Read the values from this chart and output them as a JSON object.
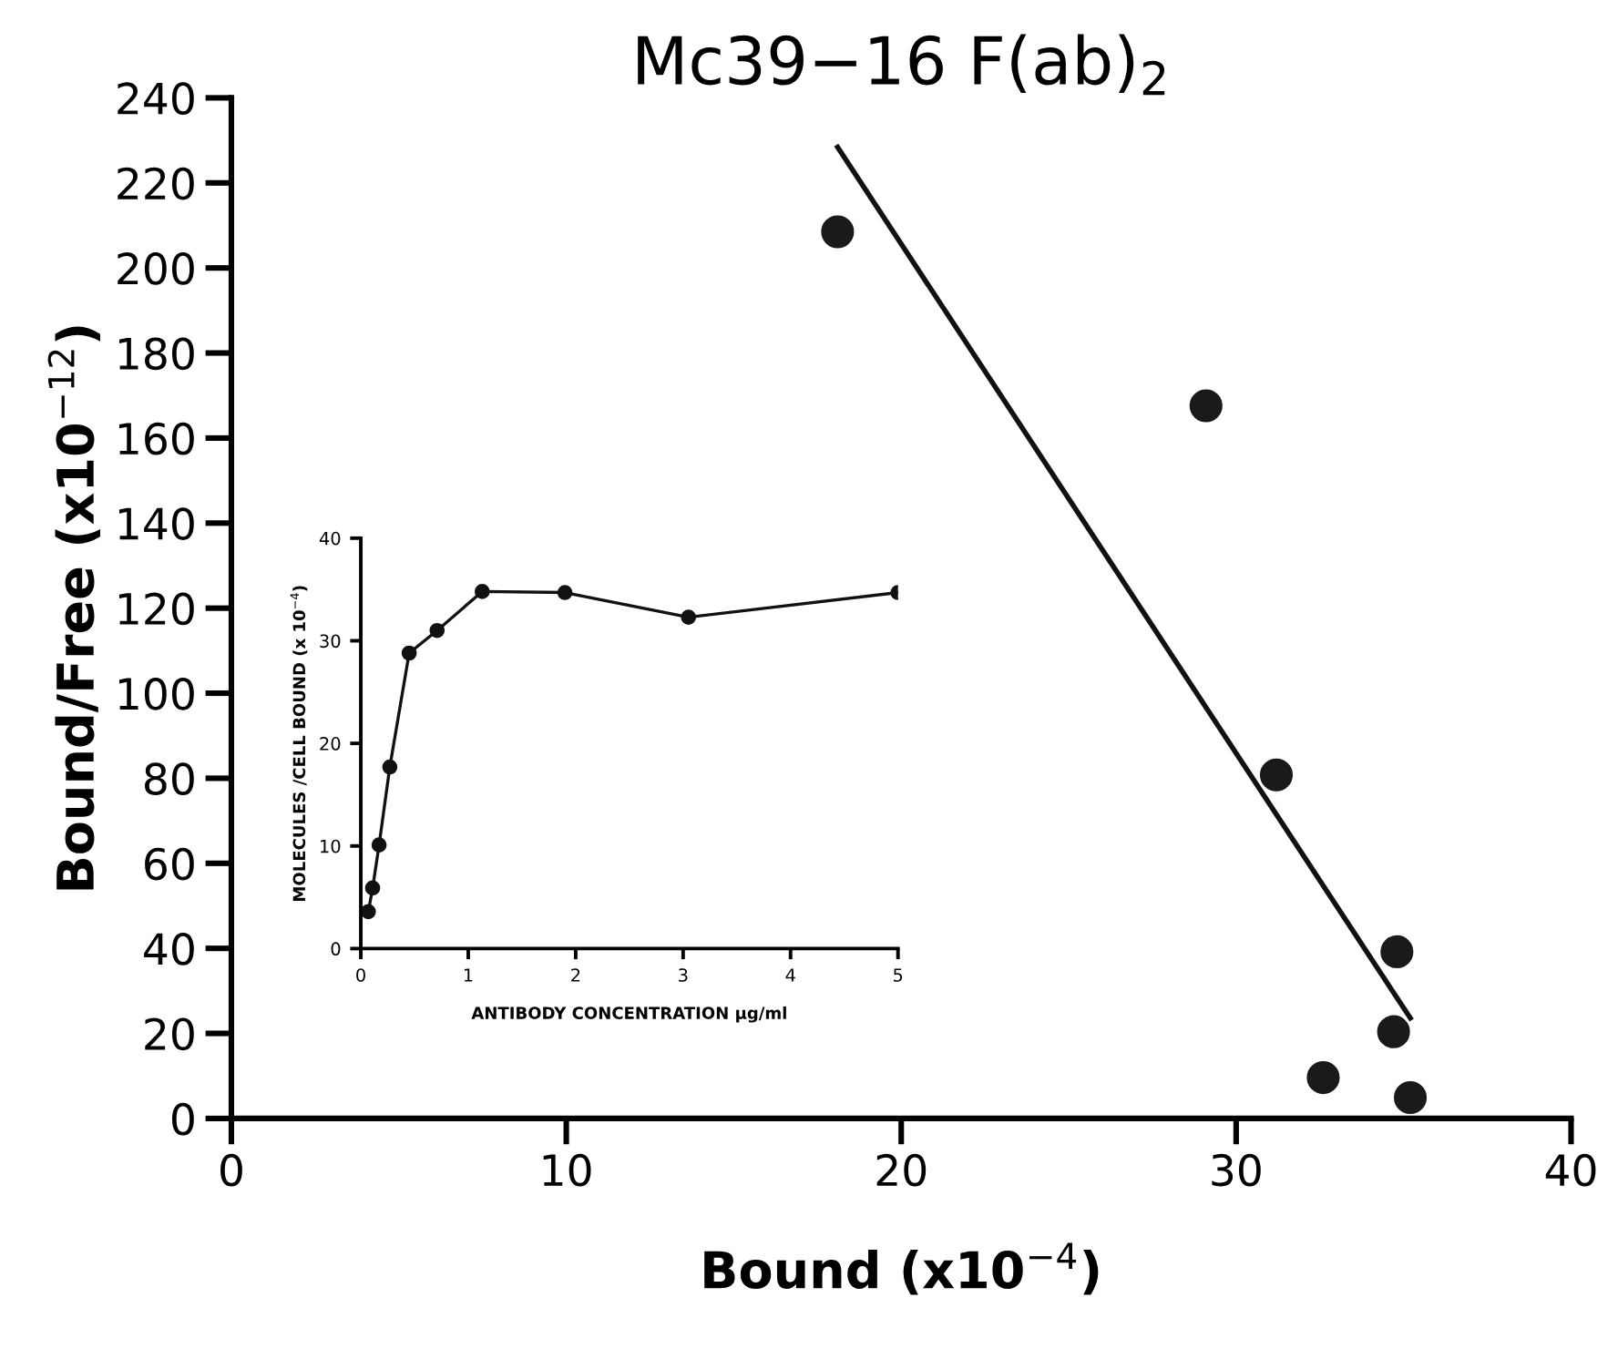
{
  "chart_data": [
    {
      "type": "scatter",
      "title": "Mc39−16 F(ab)$_{2}$",
      "xlabel": "Bound (x10$^{−4}$)",
      "ylabel": "Bound/Free (x10$^{−12}$)",
      "xlim": [
        0,
        40
      ],
      "ylim": [
        0,
        240
      ],
      "xticks": [
        0,
        10,
        20,
        30,
        40
      ],
      "yticks": [
        0,
        20,
        40,
        60,
        80,
        100,
        120,
        140,
        160,
        180,
        200,
        220,
        240
      ],
      "grid": false,
      "legend": false,
      "marker": "circle",
      "series": [
        {
          "type": "scatter",
          "color": "#1a1a1a",
          "x": [
            18.1,
            29.1,
            31.2,
            34.8,
            34.7,
            32.6,
            35.2
          ],
          "values": [
            208.5,
            167.6,
            80.8,
            39.2,
            20.4,
            9.6,
            4.9
          ]
        },
        {
          "type": "line",
          "color": "#111111",
          "marker": "none",
          "line_style": "solid",
          "x": [
            18.1,
            35.2
          ],
          "values": [
            228.4,
            23.6
          ]
        }
      ]
    },
    {
      "type": "line",
      "xlabel": "ANTIBODY CONCENTRATION µg/ml",
      "ylabel": "MOLECULES /CELL BOUND (x 10$^{−4}$)",
      "xlim": [
        0,
        5
      ],
      "ylim": [
        0,
        40
      ],
      "xticks": [
        0,
        1,
        2,
        3,
        4,
        5
      ],
      "yticks": [
        0,
        10,
        20,
        30,
        40
      ],
      "grid": false,
      "legend": false,
      "marker": "circle",
      "line_style": "solid",
      "series": [
        {
          "color": "#111111",
          "x": [
            0.07,
            0.11,
            0.17,
            0.27,
            0.45,
            0.71,
            1.13,
            1.9,
            3.05,
            5.0
          ],
          "values": [
            3.6,
            5.9,
            10.1,
            17.7,
            28.8,
            31.0,
            34.8,
            34.7,
            32.3,
            34.7
          ]
        }
      ]
    }
  ]
}
